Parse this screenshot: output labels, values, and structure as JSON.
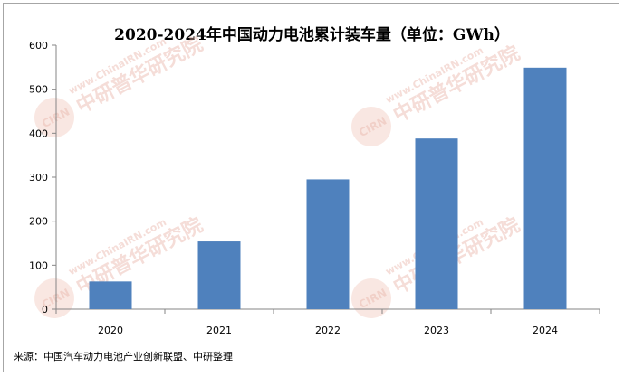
{
  "chart_data": {
    "type": "bar",
    "title": "2020-2024年中国动力电池累计装车量（单位：GWh）",
    "categories": [
      "2020",
      "2021",
      "2022",
      "2023",
      "2024"
    ],
    "values": [
      63,
      154,
      295,
      388,
      549
    ],
    "ylim": [
      0,
      600
    ],
    "yticks": [
      0,
      100,
      200,
      300,
      400,
      500,
      600
    ],
    "xlabel": "",
    "ylabel": "",
    "grid": false,
    "legend": "none",
    "bar_color": "#4f81bd"
  },
  "source_note": "来源：中国汽车动力电池产业创新联盟、中研整理",
  "watermark": {
    "url": "www.ChinaIRN.com",
    "name": "中研普华研究院",
    "badge": "CIRN"
  }
}
